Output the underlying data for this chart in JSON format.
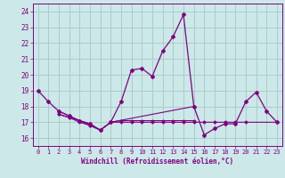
{
  "xlabel": "Windchill (Refroidissement éolien,°C)",
  "background_color": "#cce8e8",
  "grid_color": "#aacccc",
  "line_color": "#800080",
  "xlim": [
    -0.5,
    23.5
  ],
  "ylim": [
    15.5,
    24.5
  ],
  "yticks": [
    16,
    17,
    18,
    19,
    20,
    21,
    22,
    23,
    24
  ],
  "xticks": [
    0,
    1,
    2,
    3,
    4,
    5,
    6,
    7,
    8,
    9,
    10,
    11,
    12,
    13,
    14,
    15,
    16,
    17,
    18,
    19,
    20,
    21,
    22,
    23
  ],
  "series": [
    [
      19.0,
      18.3,
      17.7,
      17.4,
      17.1,
      16.9,
      16.5,
      17.0,
      18.3,
      20.3,
      20.4,
      19.9,
      21.5,
      22.4,
      23.8,
      18.0,
      16.2,
      16.6,
      16.9,
      16.9,
      18.3,
      18.9,
      17.7,
      17.0
    ],
    [
      null,
      null,
      17.7,
      17.4,
      17.1,
      16.9,
      16.5,
      17.0,
      null,
      null,
      null,
      null,
      null,
      null,
      null,
      18.0,
      null,
      null,
      null,
      null,
      null,
      null,
      null,
      null
    ],
    [
      null,
      null,
      17.5,
      17.3,
      17.1,
      16.8,
      16.5,
      17.0,
      17.1,
      17.1,
      17.1,
      17.1,
      17.1,
      17.1,
      17.1,
      17.1,
      null,
      null,
      null,
      null,
      null,
      null,
      null,
      null
    ],
    [
      null,
      null,
      17.5,
      17.3,
      17.0,
      16.8,
      16.5,
      17.0,
      17.0,
      17.0,
      17.0,
      17.0,
      17.0,
      17.0,
      17.0,
      17.0,
      17.0,
      17.0,
      17.0,
      17.0,
      17.0,
      null,
      null,
      17.0
    ]
  ]
}
